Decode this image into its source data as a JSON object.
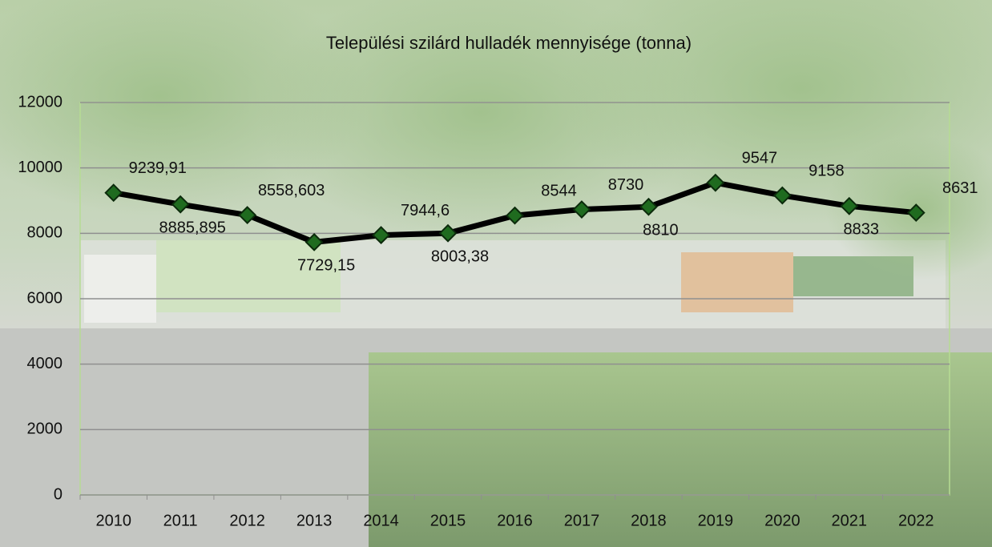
{
  "chart_data": {
    "type": "line",
    "title": "Települési szilárd hulladék mennyisége (tonna)",
    "categories": [
      "2010",
      "2011",
      "2012",
      "2013",
      "2014",
      "2015",
      "2016",
      "2017",
      "2018",
      "2019",
      "2020",
      "2021",
      "2022"
    ],
    "values": [
      9239.91,
      8885.895,
      8558.603,
      7729.15,
      7944.6,
      8003.38,
      8544,
      8730,
      8810,
      9547,
      9158,
      8833,
      8631
    ],
    "value_labels": [
      "9239,91",
      "8885,895",
      "8558,603",
      "7729,15",
      "7944,6",
      "8003,38",
      "8544",
      "8730",
      "8810",
      "9547",
      "9158",
      "8833",
      "8631"
    ],
    "color": "#000000",
    "marker_color": "#1f6b1f",
    "ylim": [
      0,
      12000
    ],
    "yticks": [
      0,
      2000,
      4000,
      6000,
      8000,
      10000,
      12000
    ],
    "grid": true
  }
}
